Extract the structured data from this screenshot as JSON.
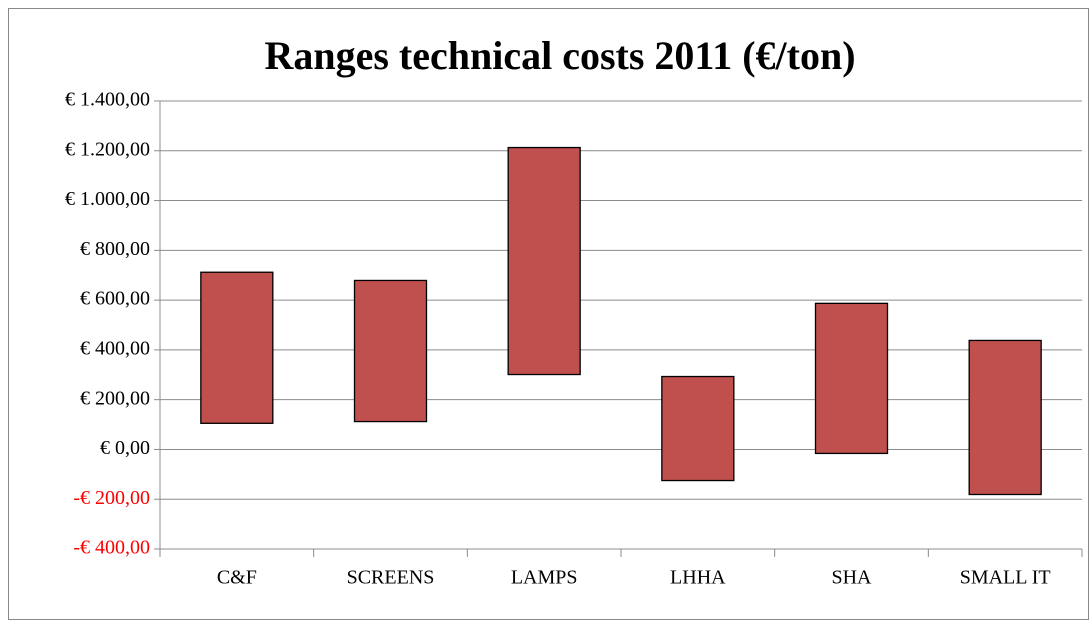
{
  "chart_data": {
    "type": "floating_bar",
    "title": "Ranges technical costs 2011 (€/ton)",
    "categories": [
      "C&F",
      "SCREENS",
      "LAMPS",
      "LHHA",
      "SHA",
      "SMALL IT"
    ],
    "low": [
      105,
      112,
      301,
      -125,
      -16,
      -181
    ],
    "high": [
      712,
      679,
      1213,
      293,
      587,
      438
    ],
    "color": "#c0504d",
    "negative_tick_color": "#ff0000",
    "ylim": [
      -400,
      1400
    ],
    "yticks": [
      {
        "value": -400,
        "label": "-€ 400,00"
      },
      {
        "value": -200,
        "label": "-€ 200,00"
      },
      {
        "value": 0,
        "label": "€ 0,00"
      },
      {
        "value": 200,
        "label": "€ 200,00"
      },
      {
        "value": 400,
        "label": "€ 400,00"
      },
      {
        "value": 600,
        "label": "€ 600,00"
      },
      {
        "value": 800,
        "label": "€ 800,00"
      },
      {
        "value": 1000,
        "label": "€ 1.000,00"
      },
      {
        "value": 1200,
        "label": "€ 1.200,00"
      },
      {
        "value": 1400,
        "label": "€ 1.400,00"
      }
    ],
    "grid": true
  }
}
